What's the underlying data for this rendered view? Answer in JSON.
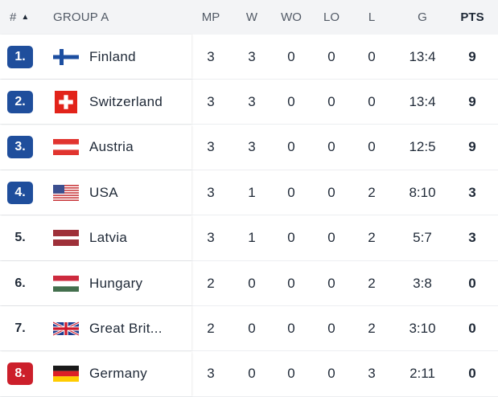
{
  "header": {
    "rank": "#",
    "sort_icon": "sort-up-arrow",
    "group": "GROUP A",
    "mp": "MP",
    "w": "W",
    "wo": "WO",
    "lo": "LO",
    "l": "L",
    "g": "G",
    "pts": "PTS"
  },
  "colors": {
    "qualify_badge": "#1f4e9c",
    "relegation_badge": "#cc1f2b",
    "header_bg": "#f3f4f6"
  },
  "rows": [
    {
      "rank": "1.",
      "badge": "qualify",
      "flag": "finland-flag",
      "team": "Finland",
      "mp": "3",
      "w": "3",
      "wo": "0",
      "lo": "0",
      "l": "0",
      "g": "13:4",
      "pts": "9"
    },
    {
      "rank": "2.",
      "badge": "qualify",
      "flag": "switzerland-flag",
      "team": "Switzerland",
      "mp": "3",
      "w": "3",
      "wo": "0",
      "lo": "0",
      "l": "0",
      "g": "13:4",
      "pts": "9"
    },
    {
      "rank": "3.",
      "badge": "qualify",
      "flag": "austria-flag",
      "team": "Austria",
      "mp": "3",
      "w": "3",
      "wo": "0",
      "lo": "0",
      "l": "0",
      "g": "12:5",
      "pts": "9"
    },
    {
      "rank": "4.",
      "badge": "qualify",
      "flag": "usa-flag",
      "team": "USA",
      "mp": "3",
      "w": "1",
      "wo": "0",
      "lo": "0",
      "l": "2",
      "g": "8:10",
      "pts": "3"
    },
    {
      "rank": "5.",
      "badge": "none",
      "flag": "latvia-flag",
      "team": "Latvia",
      "mp": "3",
      "w": "1",
      "wo": "0",
      "lo": "0",
      "l": "2",
      "g": "5:7",
      "pts": "3"
    },
    {
      "rank": "6.",
      "badge": "none",
      "flag": "hungary-flag",
      "team": "Hungary",
      "mp": "2",
      "w": "0",
      "wo": "0",
      "lo": "0",
      "l": "2",
      "g": "3:8",
      "pts": "0"
    },
    {
      "rank": "7.",
      "badge": "none",
      "flag": "great-britain-flag",
      "team": "Great Brit...",
      "mp": "2",
      "w": "0",
      "wo": "0",
      "lo": "0",
      "l": "2",
      "g": "3:10",
      "pts": "0"
    },
    {
      "rank": "8.",
      "badge": "relegation",
      "flag": "germany-flag",
      "team": "Germany",
      "mp": "3",
      "w": "0",
      "wo": "0",
      "lo": "0",
      "l": "3",
      "g": "2:11",
      "pts": "0"
    }
  ]
}
